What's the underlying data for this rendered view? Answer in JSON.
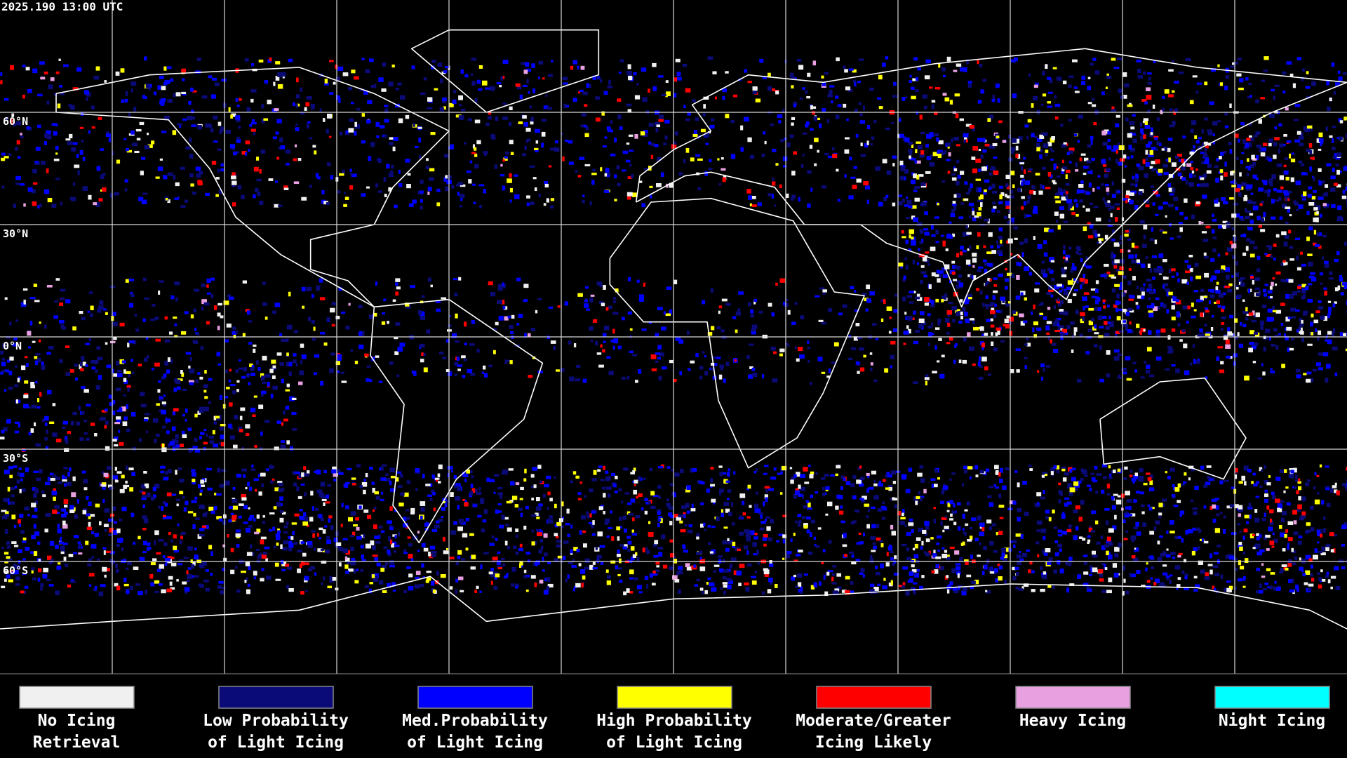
{
  "timestamp": "2025.190 13:00 UTC",
  "latitude_labels": [
    "60°N",
    "30°N",
    "0°N",
    "30°S",
    "60°S"
  ],
  "legend": [
    {
      "lines": [
        "No Icing",
        "Retrieval"
      ],
      "color": "#f0f0f0"
    },
    {
      "lines": [
        "Low Probability",
        "of Light Icing"
      ],
      "color": "#0a0a78"
    },
    {
      "lines": [
        "Med.Probability",
        "of Light Icing"
      ],
      "color": "#0000ff"
    },
    {
      "lines": [
        "High Probability",
        "of Light Icing"
      ],
      "color": "#ffff00"
    },
    {
      "lines": [
        "Moderate/Greater",
        "Icing Likely"
      ],
      "color": "#ff0000"
    },
    {
      "lines": [
        "Heavy Icing"
      ],
      "color": "#e8a0e0"
    },
    {
      "lines": [
        "Night Icing"
      ],
      "color": "#00ffff"
    }
  ]
}
